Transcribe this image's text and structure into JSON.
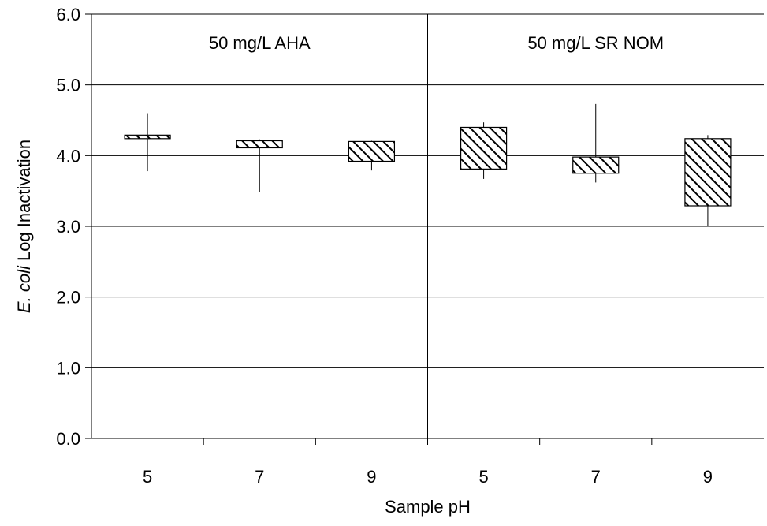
{
  "chart_data": {
    "type": "box",
    "xlabel": "Sample pH",
    "ylabel_italic": "E. coli",
    "ylabel_rest": " Log Inactivation",
    "ylim": [
      0,
      6
    ],
    "y_ticks": [
      "0.0",
      "1.0",
      "2.0",
      "3.0",
      "4.0",
      "5.0",
      "6.0"
    ],
    "grid": "horizontal",
    "panels": [
      {
        "label": "50 mg/L AHA"
      },
      {
        "label": "50 mg/L SR NOM"
      }
    ],
    "categories": [
      "5",
      "7",
      "9",
      "5",
      "7",
      "9"
    ],
    "boxes": [
      {
        "panel": 0,
        "ph": "5",
        "min": 3.78,
        "q1": 4.24,
        "q3": 4.29,
        "max": 4.6
      },
      {
        "panel": 0,
        "ph": "7",
        "min": 3.48,
        "q1": 4.11,
        "q3": 4.21,
        "max": 4.23
      },
      {
        "panel": 0,
        "ph": "9",
        "min": 3.79,
        "q1": 3.92,
        "q3": 4.2,
        "max": 4.21
      },
      {
        "panel": 1,
        "ph": "5",
        "min": 3.67,
        "q1": 3.81,
        "q3": 4.4,
        "max": 4.47
      },
      {
        "panel": 1,
        "ph": "7",
        "min": 3.62,
        "q1": 3.75,
        "q3": 3.98,
        "max": 4.73
      },
      {
        "panel": 1,
        "ph": "9",
        "min": 3.0,
        "q1": 3.29,
        "q3": 4.24,
        "max": 4.29
      }
    ],
    "box_fill": "diagonal-hatch",
    "colors": {
      "axis": "#000000",
      "box_stroke": "#000000",
      "hatch": "#000000",
      "background": "#ffffff"
    }
  }
}
